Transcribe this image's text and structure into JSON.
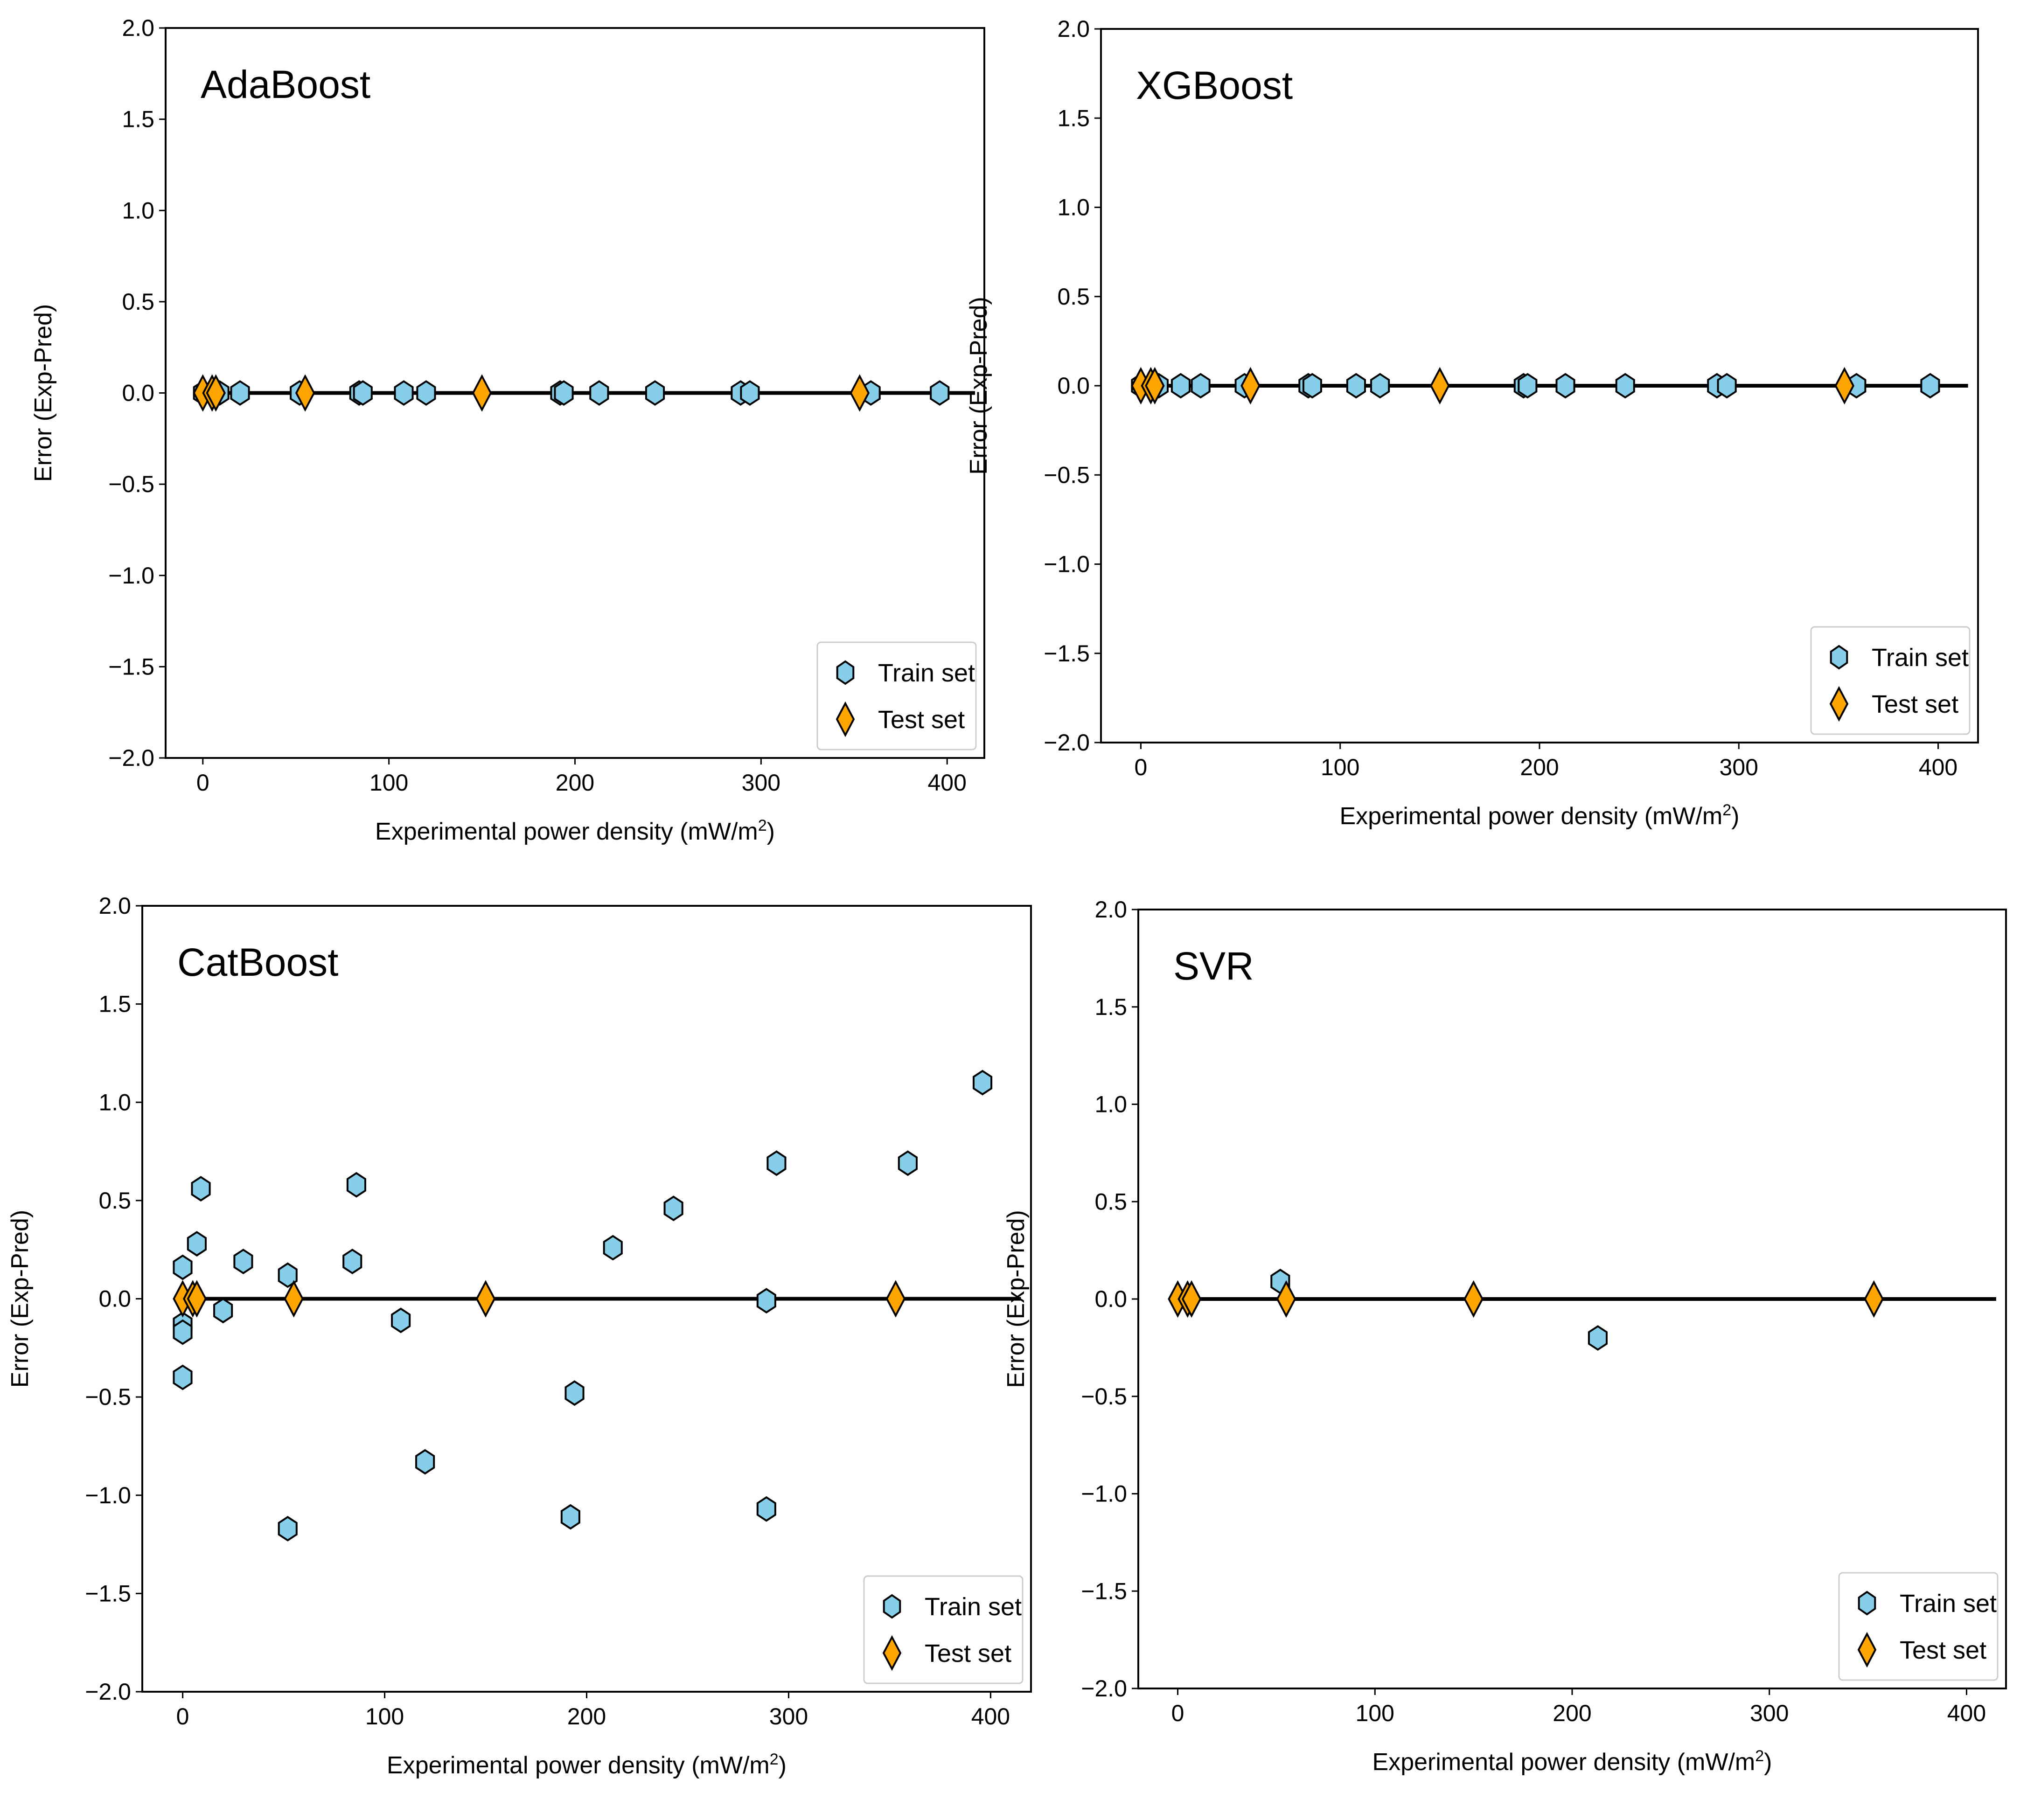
{
  "figure": {
    "legend_labels": {
      "train": "Train set",
      "test": "Test set"
    },
    "colors": {
      "train": "#87ceeb",
      "test": "#ffa500",
      "edge": "#000000",
      "zero_line": "#000000"
    }
  },
  "chart_data": [
    {
      "type": "scatter",
      "title": "AdaBoost",
      "xlabel": "Experimental power density (mW/m²)",
      "ylabel": "Error (Exp-Pred)",
      "xlim": [
        -20,
        420
      ],
      "ylim": [
        -2.0,
        2.0
      ],
      "xticks": [
        0,
        100,
        200,
        300,
        400
      ],
      "xtick_labels": [
        "0",
        "100",
        "200",
        "300",
        "400"
      ],
      "yticks": [
        -2.0,
        -1.5,
        -1.0,
        -0.5,
        0.0,
        0.5,
        1.0,
        1.5,
        2.0
      ],
      "ytick_labels": [
        "−2.0",
        "−1.5",
        "−1.0",
        "−0.5",
        "0.0",
        "0.5",
        "1.0",
        "1.5",
        "2.0"
      ],
      "legend": "lower-right",
      "reference_line": {
        "y": 0,
        "x_range": [
          0,
          415
        ]
      },
      "series": [
        {
          "name": "Train set",
          "marker": "hexagon",
          "x": [
            0,
            5,
            7,
            9,
            20,
            52,
            84,
            86,
            108,
            120,
            192,
            194,
            213,
            243,
            289,
            294,
            359,
            396
          ],
          "y": [
            0,
            0,
            0,
            0,
            0,
            0,
            0,
            0,
            0,
            0,
            0,
            0,
            0,
            0,
            0,
            0,
            0,
            0
          ]
        },
        {
          "name": "Test set",
          "marker": "thin_diamond",
          "x": [
            0,
            5,
            7,
            55,
            150,
            353
          ],
          "y": [
            0,
            0,
            0,
            0,
            0,
            0
          ]
        }
      ]
    },
    {
      "type": "scatter",
      "title": "XGBoost",
      "xlabel": "Experimental power density (mW/m²)",
      "ylabel": "Error (Exp-Pred)",
      "xlim": [
        -20,
        420
      ],
      "ylim": [
        -2.0,
        2.0
      ],
      "xticks": [
        0,
        100,
        200,
        300,
        400
      ],
      "xtick_labels": [
        "0",
        "100",
        "200",
        "300",
        "400"
      ],
      "yticks": [
        -2.0,
        -1.5,
        -1.0,
        -0.5,
        0.0,
        0.5,
        1.0,
        1.5,
        2.0
      ],
      "ytick_labels": [
        "−2.0",
        "−1.5",
        "−1.0",
        "−0.5",
        "0.0",
        "0.5",
        "1.0",
        "1.5",
        "2.0"
      ],
      "legend": "lower-right",
      "reference_line": {
        "y": 0,
        "x_range": [
          0,
          415
        ]
      },
      "series": [
        {
          "name": "Train set",
          "marker": "hexagon",
          "x": [
            0,
            5,
            7,
            9,
            20,
            30,
            52,
            84,
            86,
            108,
            120,
            192,
            194,
            213,
            243,
            289,
            294,
            359,
            396
          ],
          "y": [
            0,
            0,
            0,
            0,
            0,
            0,
            0,
            0,
            0,
            0,
            0,
            0,
            0,
            0,
            0,
            0,
            0,
            0,
            0
          ]
        },
        {
          "name": "Test set",
          "marker": "thin_diamond",
          "x": [
            0,
            5,
            7,
            55,
            150,
            353
          ],
          "y": [
            0,
            0,
            0,
            0,
            0,
            0
          ]
        }
      ]
    },
    {
      "type": "scatter",
      "title": "CatBoost",
      "xlabel": "Experimental power density (mW/m²)",
      "ylabel": "Error (Exp-Pred)",
      "xlim": [
        -20,
        420
      ],
      "ylim": [
        -2.0,
        2.0
      ],
      "xticks": [
        0,
        100,
        200,
        300,
        400
      ],
      "xtick_labels": [
        "0",
        "100",
        "200",
        "300",
        "400"
      ],
      "yticks": [
        -2.0,
        -1.5,
        -1.0,
        -0.5,
        0.0,
        0.5,
        1.0,
        1.5,
        2.0
      ],
      "ytick_labels": [
        "−2.0",
        "−1.5",
        "−1.0",
        "−0.5",
        "0.0",
        "0.5",
        "1.0",
        "1.5",
        "2.0"
      ],
      "legend": "lower-right",
      "reference_line": {
        "y": 0,
        "x_range": [
          0,
          415
        ]
      },
      "series": [
        {
          "name": "Train set",
          "marker": "hexagon",
          "x": [
            0,
            0,
            0,
            0,
            7,
            9,
            20,
            30,
            52,
            52,
            84,
            86,
            108,
            120,
            192,
            194,
            213,
            243,
            289,
            289,
            294,
            359,
            396
          ],
          "y": [
            0.16,
            -0.13,
            -0.17,
            -0.4,
            0.28,
            0.56,
            -0.06,
            0.19,
            0.12,
            -1.17,
            0.19,
            0.58,
            -0.11,
            -0.83,
            -1.11,
            -0.48,
            0.26,
            0.46,
            -0.01,
            -1.07,
            0.69,
            0.69,
            1.1
          ]
        },
        {
          "name": "Test set",
          "marker": "thin_diamond",
          "x": [
            0,
            5,
            7,
            55,
            150,
            353
          ],
          "y": [
            0,
            0,
            0,
            0,
            0,
            0
          ]
        }
      ]
    },
    {
      "type": "scatter",
      "title": "SVR",
      "xlabel": "Experimental power density (mW/m²)",
      "ylabel": "Error (Exp-Pred)",
      "xlim": [
        -20,
        420
      ],
      "ylim": [
        -2.0,
        2.0
      ],
      "xticks": [
        0,
        100,
        200,
        300,
        400
      ],
      "xtick_labels": [
        "0",
        "100",
        "200",
        "300",
        "400"
      ],
      "yticks": [
        -2.0,
        -1.5,
        -1.0,
        -0.5,
        0.0,
        0.5,
        1.0,
        1.5,
        2.0
      ],
      "ytick_labels": [
        "−2.0",
        "−1.5",
        "−1.0",
        "−0.5",
        "0.0",
        "0.5",
        "1.0",
        "1.5",
        "2.0"
      ],
      "legend": "lower-right",
      "reference_line": {
        "y": 0,
        "x_range": [
          0,
          415
        ]
      },
      "series": [
        {
          "name": "Train set",
          "marker": "hexagon",
          "x": [
            52,
            213
          ],
          "y": [
            0.09,
            -0.2
          ]
        },
        {
          "name": "Test set",
          "marker": "thin_diamond",
          "x": [
            0,
            5,
            7,
            55,
            150,
            353
          ],
          "y": [
            0,
            0,
            0,
            0,
            0,
            0
          ]
        }
      ]
    }
  ]
}
